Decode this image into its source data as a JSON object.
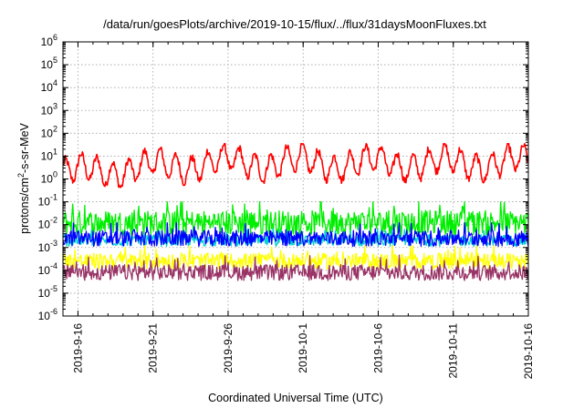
{
  "chart_data": {
    "type": "line",
    "title": "/data/run/goesPlots/archive/2019-10-15/flux/../flux/31daysMoonFluxes.txt",
    "xlabel": "Coordinated Universal Time (UTC)",
    "ylabel": "protons/cm²-s-sr-MeV",
    "ylabel_base": "protons/cm",
    "ylabel_sup": "2",
    "ylabel_rest": "-s-sr-MeV",
    "yscale": "log",
    "ylim": [
      1e-06,
      1000000.0
    ],
    "xlim": [
      "2019-09-15",
      "2019-10-16"
    ],
    "grid": true,
    "x_ticks": [
      "2019-9-16",
      "2019-9-21",
      "2019-9-26",
      "2019-10-1",
      "2019-10-6",
      "2019-10-11",
      "2019-10-16"
    ],
    "y_ticks": [
      {
        "value": 1000000.0,
        "base": "10",
        "exp": "6"
      },
      {
        "value": 100000.0,
        "base": "10",
        "exp": "5"
      },
      {
        "value": 10000.0,
        "base": "10",
        "exp": "4"
      },
      {
        "value": 1000.0,
        "base": "10",
        "exp": "3"
      },
      {
        "value": 100.0,
        "base": "10",
        "exp": "2"
      },
      {
        "value": 10.0,
        "base": "10",
        "exp": "1"
      },
      {
        "value": 1.0,
        "base": "10",
        "exp": "0"
      },
      {
        "value": 0.1,
        "base": "10",
        "exp": "-1"
      },
      {
        "value": 0.01,
        "base": "10",
        "exp": "-2"
      },
      {
        "value": 0.001,
        "base": "10",
        "exp": "-3"
      },
      {
        "value": 0.0001,
        "base": "10",
        "exp": "-4"
      },
      {
        "value": 1e-05,
        "base": "10",
        "exp": "-5"
      },
      {
        "value": 1e-06,
        "base": "10",
        "exp": "-6"
      }
    ],
    "series": [
      {
        "color": "#ff0000",
        "typical": 5.0,
        "spread": 1.1,
        "min": 0.05,
        "max": 35
      },
      {
        "color": "#00ee00",
        "typical": 0.012,
        "spread": 0.55,
        "min": 0.002,
        "max": 0.1
      },
      {
        "color": "#00d0d0",
        "typical": 0.002,
        "spread": 0.25,
        "min": 0.0008,
        "max": 0.012
      },
      {
        "color": "#0000ff",
        "typical": 0.0025,
        "spread": 0.35,
        "min": 0.0007,
        "max": 0.012
      },
      {
        "color": "#ffff00",
        "typical": 0.00025,
        "spread": 0.35,
        "min": 6e-05,
        "max": 0.0012
      },
      {
        "color": "#993366",
        "typical": 8e-05,
        "spread": 0.35,
        "min": 1.5e-05,
        "max": 0.0005
      }
    ]
  }
}
